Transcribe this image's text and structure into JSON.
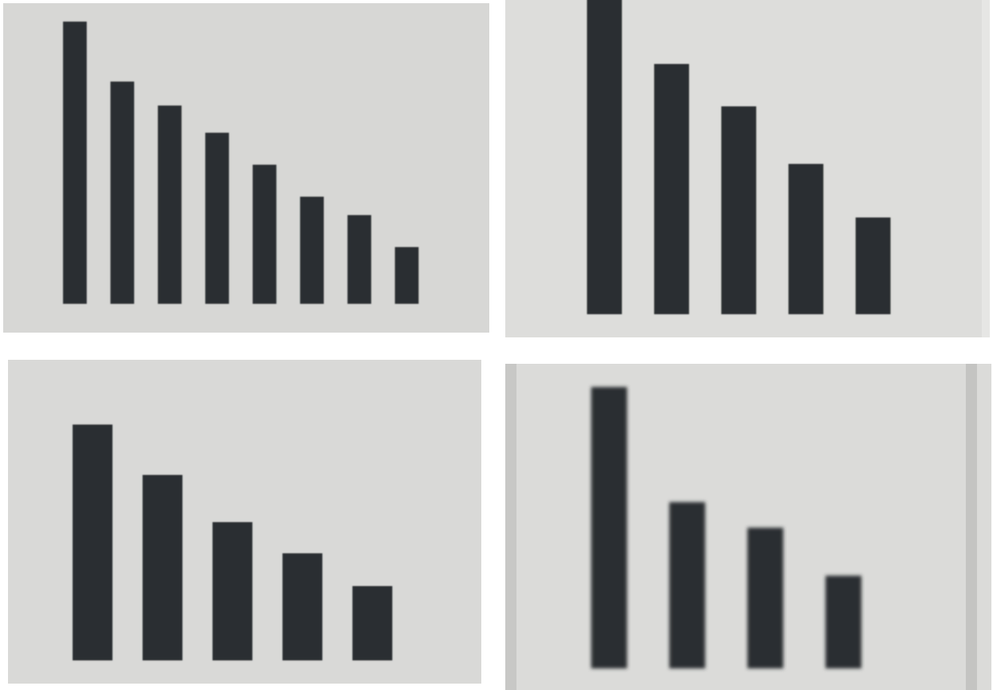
{
  "chart_data": [
    {
      "type": "bar",
      "categories": [
        null,
        null,
        null,
        null,
        null,
        null,
        null,
        null
      ],
      "values": [
        353,
        278,
        248,
        214,
        174,
        134,
        111,
        71
      ],
      "color": "#2a2e31",
      "ylim": [
        0,
        400
      ]
    },
    {
      "type": "bar",
      "categories": [
        null,
        null,
        null,
        null,
        null
      ],
      "values": [
        400,
        313,
        260,
        188,
        121
      ],
      "color": "#2a2e31",
      "ylim": [
        0,
        400
      ]
    },
    {
      "type": "bar",
      "categories": [
        null,
        null,
        null,
        null,
        null
      ],
      "values": [
        295,
        232,
        173,
        134,
        93
      ],
      "color": "#2a2e31",
      "ylim": [
        0,
        400
      ]
    },
    {
      "type": "bar",
      "categories": [
        null,
        null,
        null,
        null
      ],
      "values": [
        352,
        208,
        176,
        116
      ],
      "color": "#2a2e31",
      "ylim": [
        0,
        400
      ]
    }
  ]
}
